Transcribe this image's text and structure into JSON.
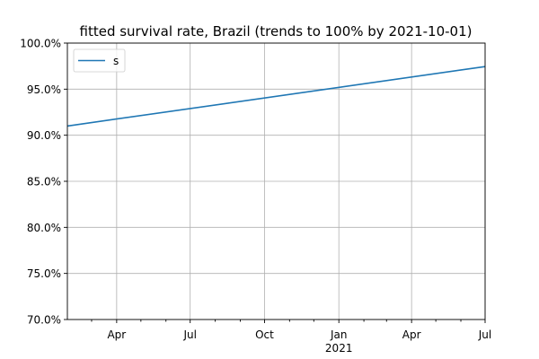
{
  "chart_data": {
    "type": "line",
    "title": "fitted survival rate, Brazil (trends to 100% by 2021-10-01)",
    "xlabel": "",
    "ylabel": "",
    "xlim": [
      "2020-01-31",
      "2021-07-01"
    ],
    "ylim": [
      70.0,
      100.0
    ],
    "y_tick_values": [
      70,
      75,
      80,
      85,
      90,
      95,
      100
    ],
    "y_tick_labels": [
      "70.0%",
      "75.0%",
      "80.0%",
      "85.0%",
      "90.0%",
      "95.0%",
      "100.0%"
    ],
    "x_major_ticks": [
      {
        "date": "2020-04-01",
        "label": "Apr",
        "sublabel": ""
      },
      {
        "date": "2020-07-01",
        "label": "Jul",
        "sublabel": ""
      },
      {
        "date": "2020-10-01",
        "label": "Oct",
        "sublabel": ""
      },
      {
        "date": "2021-01-01",
        "label": "Jan",
        "sublabel": "2021"
      },
      {
        "date": "2021-04-01",
        "label": "Apr",
        "sublabel": ""
      },
      {
        "date": "2021-07-01",
        "label": "Jul",
        "sublabel": ""
      }
    ],
    "x_minor_ticks": [
      "2020-03-01",
      "2020-05-01",
      "2020-06-01",
      "2020-08-01",
      "2020-09-01",
      "2020-11-01",
      "2020-12-01",
      "2021-02-01",
      "2021-03-01",
      "2021-05-01",
      "2021-06-01"
    ],
    "grid": true,
    "legend_position": "top-left",
    "series": [
      {
        "name": "s",
        "color": "#1f77b4",
        "x": [
          "2020-01-31",
          "2021-07-01"
        ],
        "y": [
          91.0,
          97.45
        ]
      }
    ]
  }
}
